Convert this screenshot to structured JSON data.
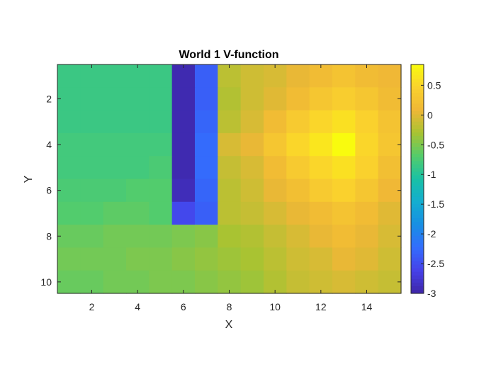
{
  "chart_data": {
    "type": "heatmap",
    "title": "World 1 V-function",
    "xlabel": "X",
    "ylabel": "Y",
    "colormap": "parula",
    "x": [
      1,
      2,
      3,
      4,
      5,
      6,
      7,
      8,
      9,
      10,
      11,
      12,
      13,
      14,
      15
    ],
    "y": [
      1,
      2,
      3,
      4,
      5,
      6,
      7,
      8,
      9,
      10
    ],
    "xlim": [
      0.5,
      15.5
    ],
    "ylim": [
      0.5,
      10.5
    ],
    "y_direction": "reverse",
    "xticks": [
      "2",
      "4",
      "6",
      "8",
      "10",
      "12",
      "14"
    ],
    "yticks": [
      "2",
      "4",
      "6",
      "8",
      "10"
    ],
    "clim": [
      -3.0,
      0.85
    ],
    "colorbar_ticks": [
      "0.5",
      "0",
      "-0.5",
      "-1",
      "-1.5",
      "-2",
      "-2.5",
      "-3"
    ],
    "values": [
      [
        -0.85,
        -0.85,
        -0.85,
        -0.85,
        -0.85,
        -2.95,
        -2.35,
        -0.2,
        -0.1,
        -0.05,
        0.05,
        0.15,
        0.25,
        0.15,
        0.1
      ],
      [
        -0.85,
        -0.85,
        -0.85,
        -0.85,
        -0.85,
        -2.95,
        -2.35,
        -0.25,
        -0.1,
        0.0,
        0.15,
        0.3,
        0.4,
        0.3,
        0.15
      ],
      [
        -0.85,
        -0.85,
        -0.85,
        -0.85,
        -0.85,
        -2.95,
        -2.3,
        -0.2,
        -0.05,
        0.15,
        0.35,
        0.5,
        0.6,
        0.45,
        0.25
      ],
      [
        -0.8,
        -0.8,
        -0.8,
        -0.8,
        -0.8,
        -2.95,
        -2.25,
        -0.05,
        0.05,
        0.3,
        0.5,
        0.65,
        0.85,
        0.5,
        0.3
      ],
      [
        -0.8,
        -0.8,
        -0.8,
        -0.8,
        -0.75,
        -2.95,
        -2.25,
        -0.15,
        -0.05,
        0.15,
        0.35,
        0.5,
        0.6,
        0.45,
        0.2
      ],
      [
        -0.75,
        -0.75,
        -0.75,
        -0.7,
        -0.7,
        -2.9,
        -2.3,
        -0.2,
        -0.1,
        0.05,
        0.2,
        0.35,
        0.45,
        0.3,
        0.1
      ],
      [
        -0.7,
        -0.7,
        -0.65,
        -0.65,
        -0.7,
        -2.55,
        -2.35,
        -0.2,
        -0.15,
        -0.05,
        0.05,
        0.15,
        0.25,
        0.15,
        0.0
      ],
      [
        -0.6,
        -0.6,
        -0.55,
        -0.55,
        -0.55,
        -0.5,
        -0.45,
        -0.3,
        -0.25,
        -0.15,
        -0.05,
        0.05,
        0.15,
        0.05,
        -0.05
      ],
      [
        -0.55,
        -0.55,
        -0.55,
        -0.5,
        -0.5,
        -0.45,
        -0.4,
        -0.35,
        -0.3,
        -0.2,
        -0.1,
        -0.05,
        0.05,
        0.0,
        -0.1
      ],
      [
        -0.6,
        -0.6,
        -0.55,
        -0.55,
        -0.5,
        -0.5,
        -0.45,
        -0.4,
        -0.35,
        -0.25,
        -0.15,
        -0.1,
        -0.05,
        -0.1,
        -0.15
      ]
    ]
  }
}
